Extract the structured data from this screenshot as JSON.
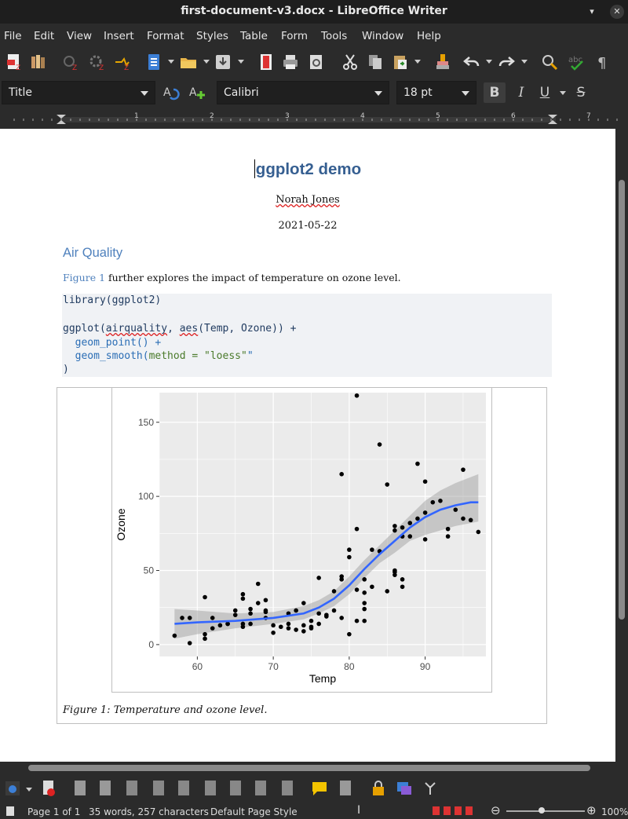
{
  "window": {
    "title": "first-document-v3.docx - LibreOffice Writer",
    "minimize_glyph": "▾",
    "close_glyph": "✕"
  },
  "menu": [
    "File",
    "Edit",
    "View",
    "Insert",
    "Format",
    "Styles",
    "Table",
    "Form",
    "Tools",
    "Window",
    "Help"
  ],
  "formatting": {
    "paragraph_style": "Title",
    "font_name": "Calibri",
    "font_size": "18 pt",
    "bold": "B",
    "italic": "I",
    "underline": "U",
    "strike": "S"
  },
  "ruler": {
    "labels": [
      "1",
      "2",
      "3",
      "4",
      "5",
      "6",
      "7"
    ]
  },
  "document": {
    "title": "ggplot2 demo",
    "author": "Norah Jones",
    "date": "2021-05-22",
    "heading": "Air Quality",
    "paragraph_ref": "Figure 1",
    "paragraph_rest": " further explores the impact of temperature on ozone level.",
    "code": {
      "line1": "library(ggplot2)",
      "line3a": "ggplot(",
      "line3b": "airquality",
      "line3c": ", ",
      "line3d": "aes",
      "line3e": "(Temp, Ozone)) +",
      "line4": "  geom_point() +",
      "line5a": "  geom_smooth(",
      "line5b": "method = ",
      "line5c": "\"loess\"",
      "line6": ")"
    },
    "caption": "Figure 1: Temperature and ozone level."
  },
  "status": {
    "page": "Page 1 of 1",
    "words": "35 words, 257 characters",
    "page_style": "Default Page Style",
    "zoom": "100%"
  },
  "colors": {
    "title": "#365f91",
    "heading": "#4f81bd",
    "panel_bg": "#ebebeb",
    "smooth_line": "#3366ff",
    "points": "#000000"
  },
  "chart_data": {
    "type": "scatter",
    "title": "",
    "xlabel": "Temp",
    "ylabel": "Ozone",
    "xlim": [
      55,
      98
    ],
    "ylim": [
      -8,
      170
    ],
    "x_ticks": [
      60,
      70,
      80,
      90
    ],
    "y_ticks": [
      0,
      50,
      100,
      150
    ],
    "grid": true,
    "series": [
      {
        "type": "scatter",
        "points": [
          [
            57,
            6
          ],
          [
            58,
            18
          ],
          [
            59,
            18
          ],
          [
            59,
            1
          ],
          [
            61,
            4
          ],
          [
            61,
            7
          ],
          [
            61,
            32
          ],
          [
            62,
            11
          ],
          [
            62,
            18
          ],
          [
            63,
            13
          ],
          [
            64,
            14
          ],
          [
            64,
            14
          ],
          [
            65,
            20
          ],
          [
            65,
            23
          ],
          [
            66,
            12
          ],
          [
            66,
            14
          ],
          [
            66,
            31
          ],
          [
            66,
            34
          ],
          [
            67,
            21
          ],
          [
            67,
            24
          ],
          [
            67,
            14
          ],
          [
            68,
            28
          ],
          [
            68,
            41
          ],
          [
            69,
            18
          ],
          [
            69,
            22
          ],
          [
            69,
            30
          ],
          [
            69,
            23
          ],
          [
            70,
            13
          ],
          [
            70,
            8
          ],
          [
            71,
            12
          ],
          [
            72,
            11
          ],
          [
            72,
            21
          ],
          [
            72,
            14
          ],
          [
            73,
            10
          ],
          [
            73,
            23
          ],
          [
            74,
            9
          ],
          [
            74,
            13
          ],
          [
            74,
            28
          ],
          [
            75,
            11
          ],
          [
            75,
            16
          ],
          [
            75,
            12
          ],
          [
            76,
            14
          ],
          [
            76,
            21
          ],
          [
            76,
            45
          ],
          [
            77,
            19
          ],
          [
            77,
            20
          ],
          [
            78,
            23
          ],
          [
            78,
            36
          ],
          [
            79,
            44
          ],
          [
            79,
            46
          ],
          [
            79,
            18
          ],
          [
            79,
            115
          ],
          [
            80,
            7
          ],
          [
            80,
            64
          ],
          [
            80,
            59
          ],
          [
            81,
            37
          ],
          [
            81,
            16
          ],
          [
            81,
            78
          ],
          [
            81,
            168
          ],
          [
            82,
            16
          ],
          [
            82,
            44
          ],
          [
            82,
            24
          ],
          [
            82,
            28
          ],
          [
            82,
            35
          ],
          [
            83,
            64
          ],
          [
            83,
            39
          ],
          [
            84,
            63
          ],
          [
            84,
            135
          ],
          [
            85,
            108
          ],
          [
            85,
            36
          ],
          [
            86,
            47
          ],
          [
            86,
            49
          ],
          [
            86,
            50
          ],
          [
            86,
            77
          ],
          [
            86,
            80
          ],
          [
            87,
            44
          ],
          [
            87,
            39
          ],
          [
            87,
            73
          ],
          [
            87,
            79
          ],
          [
            88,
            73
          ],
          [
            88,
            82
          ],
          [
            89,
            85
          ],
          [
            89,
            122
          ],
          [
            90,
            89
          ],
          [
            90,
            71
          ],
          [
            90,
            110
          ],
          [
            91,
            96
          ],
          [
            92,
            97
          ],
          [
            93,
            78
          ],
          [
            93,
            73
          ],
          [
            94,
            91
          ],
          [
            95,
            85
          ],
          [
            95,
            118
          ],
          [
            96,
            84
          ],
          [
            97,
            76
          ]
        ]
      },
      {
        "type": "line",
        "points": [
          [
            57,
            14
          ],
          [
            60,
            15
          ],
          [
            65,
            16
          ],
          [
            70,
            18
          ],
          [
            74,
            21
          ],
          [
            76,
            25
          ],
          [
            78,
            31
          ],
          [
            80,
            40
          ],
          [
            82,
            51
          ],
          [
            84,
            61
          ],
          [
            86,
            70
          ],
          [
            88,
            79
          ],
          [
            90,
            86
          ],
          [
            92,
            91
          ],
          [
            94,
            94
          ],
          [
            96,
            96
          ],
          [
            97,
            96
          ]
        ],
        "band": [
          [
            57,
            4,
            24
          ],
          [
            60,
            7,
            23
          ],
          [
            65,
            11,
            21
          ],
          [
            70,
            14,
            22
          ],
          [
            74,
            17,
            26
          ],
          [
            76,
            21,
            30
          ],
          [
            78,
            26,
            36
          ],
          [
            80,
            34,
            46
          ],
          [
            82,
            45,
            57
          ],
          [
            84,
            55,
            67
          ],
          [
            86,
            62,
            77
          ],
          [
            88,
            70,
            87
          ],
          [
            90,
            74,
            97
          ],
          [
            92,
            77,
            104
          ],
          [
            94,
            80,
            109
          ],
          [
            96,
            82,
            113
          ],
          [
            97,
            83,
            115
          ]
        ]
      }
    ]
  }
}
